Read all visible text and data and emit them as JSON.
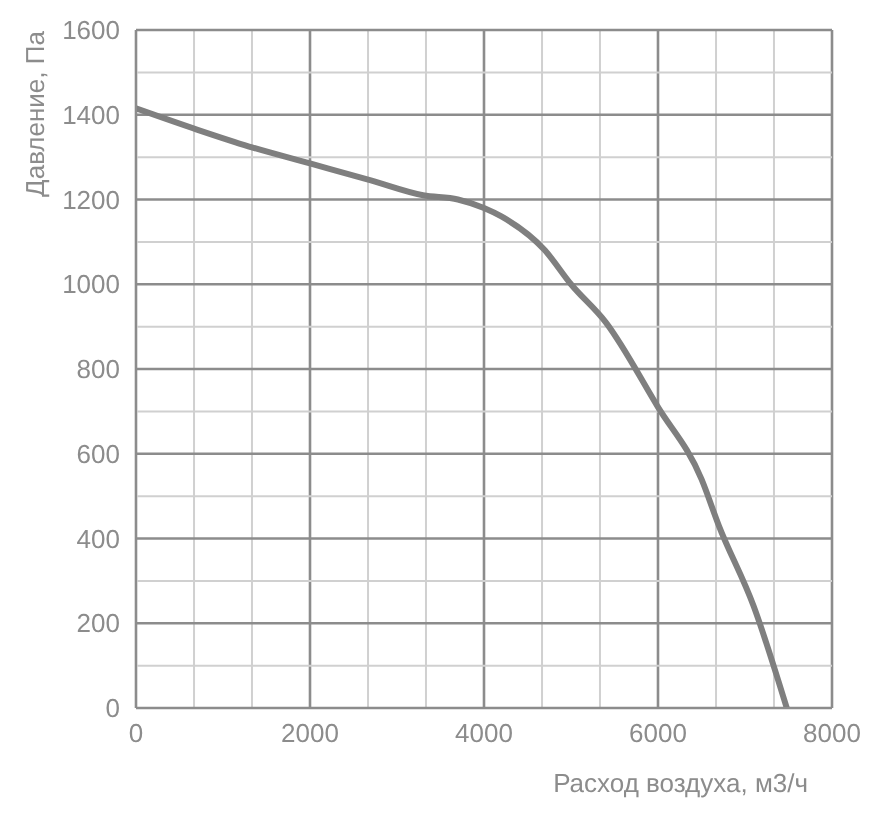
{
  "chart_data": {
    "type": "line",
    "xlabel": "Расход воздуха, м3/ч",
    "ylabel": "Давление, Па",
    "x": [
      0,
      700,
      1300,
      2000,
      2700,
      3300,
      3700,
      4000,
      4200,
      4700,
      5000,
      5400,
      6000,
      6500,
      6700,
      7100,
      7480
    ],
    "series": [
      {
        "color": "#7f7f7f",
        "values": [
          1415,
          1365,
          1325,
          1285,
          1245,
          1210,
          1200,
          1180,
          1160,
          1080,
          1000,
          910,
          710,
          540,
          430,
          240,
          0
        ]
      }
    ],
    "xlim": [
      0,
      8000
    ],
    "xticks": [
      0,
      {
        "value": 667,
        "label": null
      },
      {
        "value": 1333,
        "label": null
      },
      2000,
      {
        "value": 2667,
        "label": null
      },
      {
        "value": 3333,
        "label": null
      },
      4000,
      {
        "value": 4667,
        "label": null
      },
      {
        "value": 5333,
        "label": null
      },
      6000,
      {
        "value": 6667,
        "label": null
      },
      {
        "value": 7333,
        "label": null
      },
      8000
    ],
    "ylim": [
      0,
      1600
    ],
    "yticks": [
      0,
      {
        "value": 100,
        "label": null
      },
      200,
      {
        "value": 300,
        "label": null
      },
      400,
      {
        "value": 500,
        "label": null
      },
      600,
      {
        "value": 700,
        "label": null
      },
      800,
      {
        "value": 900,
        "label": null
      },
      1000,
      {
        "value": 1100,
        "label": null
      },
      1200,
      {
        "value": 1300,
        "label": null
      },
      1400,
      {
        "value": 1500,
        "label": null
      },
      1600
    ],
    "grid": true,
    "marker": "none",
    "line_style": "solid"
  }
}
